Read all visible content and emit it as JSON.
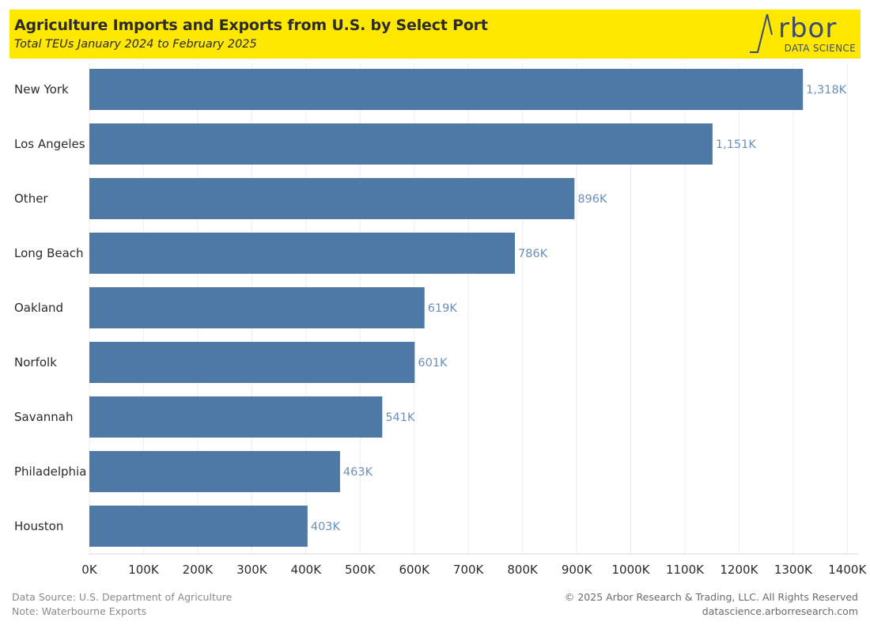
{
  "header": {
    "title": "Agriculture Imports and Exports from U.S. by Select Port",
    "subtitle": "Total TEUs January 2024 to February 2025"
  },
  "logo": {
    "word": "rbor",
    "tagline": "DATA SCIENCE",
    "color": "#3a4a78"
  },
  "chart_data": {
    "type": "bar",
    "orientation": "horizontal",
    "categories": [
      "New York",
      "Los Angeles",
      "Other",
      "Long Beach",
      "Oakland",
      "Norfolk",
      "Savannah",
      "Philadelphia",
      "Houston"
    ],
    "values": [
      1318,
      1151,
      896,
      786,
      619,
      601,
      541,
      463,
      403
    ],
    "value_labels": [
      "1,318K",
      "1,151K",
      "896K",
      "786K",
      "619K",
      "601K",
      "541K",
      "463K",
      "403K"
    ],
    "x_ticks": [
      0,
      100,
      200,
      300,
      400,
      500,
      600,
      700,
      800,
      900,
      1000,
      1100,
      1200,
      1300,
      1400
    ],
    "x_tick_labels": [
      "0K",
      "100K",
      "200K",
      "300K",
      "400K",
      "500K",
      "600K",
      "700K",
      "800K",
      "900K",
      "1000K",
      "1100K",
      "1200K",
      "1300K",
      "1400K"
    ],
    "xlim": [
      0,
      1420
    ],
    "unit": "thousand TEUs",
    "grid": "vertical",
    "bar_color": "#4e79a7",
    "label_color": "#6b8fb8"
  },
  "footer": {
    "source": "Data Source: U.S. Department of Agriculture",
    "note": "Note: Waterbourne Exports",
    "copyright": "© 2025 Arbor Research & Trading, LLC. All Rights Reserved",
    "website": "datascience.arborresearch.com"
  }
}
